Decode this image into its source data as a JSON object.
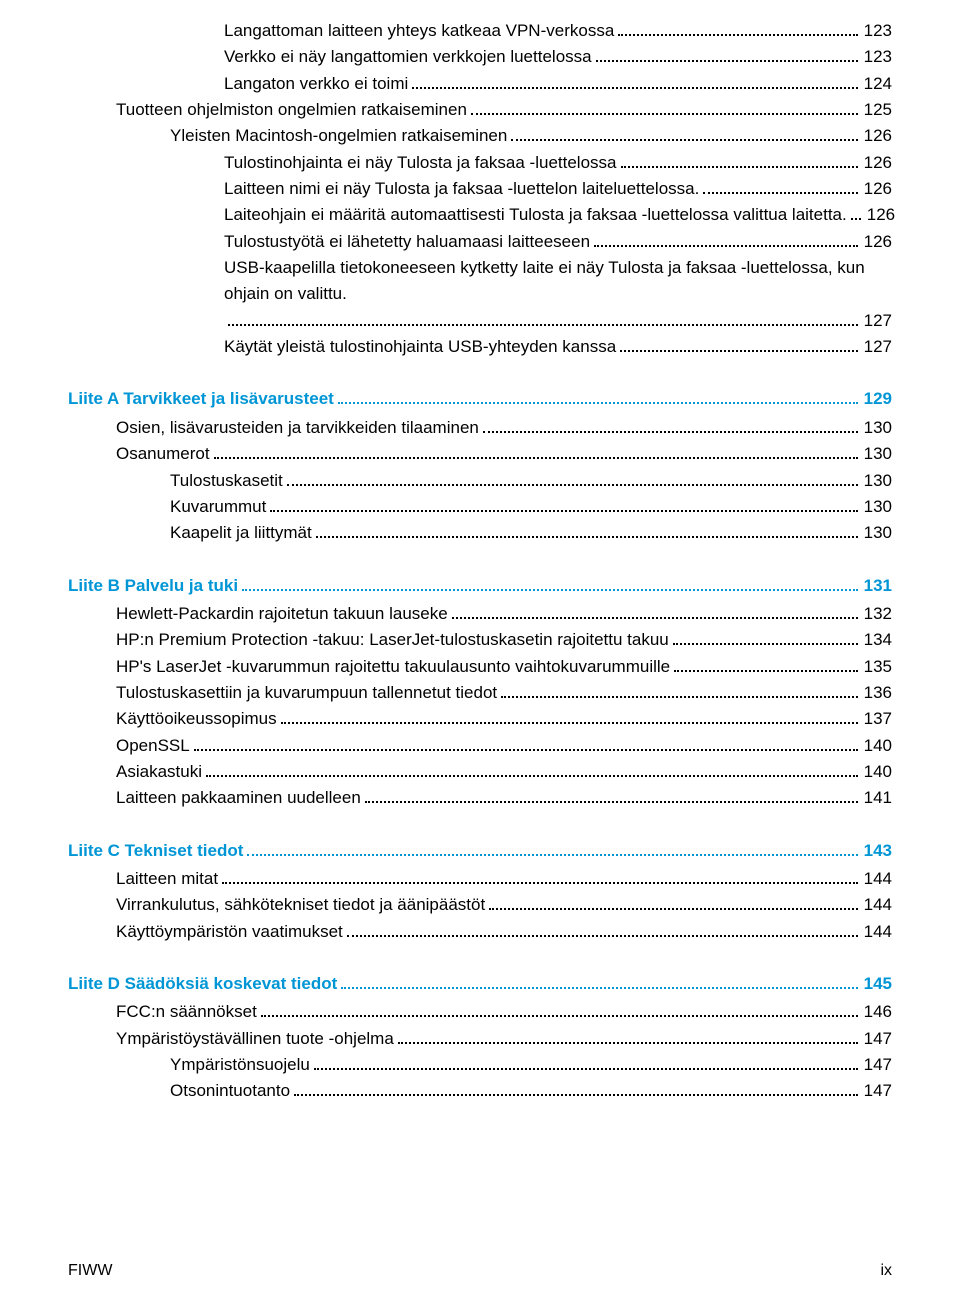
{
  "colors": {
    "heading": "#0096d6",
    "text": "#000000",
    "background": "#ffffff",
    "leader": "#000000"
  },
  "typography": {
    "body_fontsize": 17,
    "line_height": 1.55,
    "font_family": "Arial"
  },
  "sections": [
    {
      "heading": null,
      "entries": [
        {
          "indent": 4,
          "label": "Langattoman laitteen yhteys katkeaa VPN-verkossa",
          "page": "123"
        },
        {
          "indent": 4,
          "label": "Verkko ei näy langattomien verkkojen luettelossa",
          "page": "123"
        },
        {
          "indent": 4,
          "label": "Langaton verkko ei toimi",
          "page": "124"
        },
        {
          "indent": 2,
          "label": "Tuotteen ohjelmiston ongelmien ratkaiseminen",
          "page": "125"
        },
        {
          "indent": 3,
          "label": "Yleisten Macintosh-ongelmien ratkaiseminen",
          "page": "126"
        },
        {
          "indent": 4,
          "label": "Tulostinohjainta ei näy Tulosta ja faksaa -luettelossa",
          "page": "126"
        },
        {
          "indent": 4,
          "label": "Laitteen nimi ei näy Tulosta ja faksaa -luettelon laiteluettelossa.",
          "page": "126"
        },
        {
          "indent": 4,
          "label": "Laiteohjain ei määritä automaattisesti Tulosta ja faksaa -luettelossa valittua laitetta.",
          "page": "126"
        },
        {
          "indent": 4,
          "label": "Tulostustyötä ei lähetetty haluamaasi laitteeseen",
          "page": "126"
        },
        {
          "indent": 4,
          "label": "USB-kaapelilla tietokoneeseen kytketty laite ei näy Tulosta ja faksaa -luettelossa, kun ohjain on valittu.",
          "page": "127",
          "wrap": true
        },
        {
          "indent": 4,
          "label": "Käytät yleistä tulostinohjainta USB-yhteyden kanssa",
          "page": "127"
        }
      ]
    },
    {
      "heading": {
        "label": "Liite A  Tarvikkeet ja lisävarusteet",
        "page": "129"
      },
      "entries": [
        {
          "indent": 2,
          "label": "Osien, lisävarusteiden ja tarvikkeiden tilaaminen",
          "page": "130"
        },
        {
          "indent": 2,
          "label": "Osanumerot",
          "page": "130"
        },
        {
          "indent": 3,
          "label": "Tulostuskasetit",
          "page": "130"
        },
        {
          "indent": 3,
          "label": "Kuvarummut",
          "page": "130"
        },
        {
          "indent": 3,
          "label": "Kaapelit ja liittymät",
          "page": "130"
        }
      ]
    },
    {
      "heading": {
        "label": "Liite B  Palvelu ja tuki",
        "page": "131"
      },
      "entries": [
        {
          "indent": 2,
          "label": "Hewlett-Packardin rajoitetun takuun lauseke",
          "page": "132"
        },
        {
          "indent": 2,
          "label": "HP:n Premium Protection -takuu: LaserJet-tulostuskasetin rajoitettu takuu",
          "page": "134"
        },
        {
          "indent": 2,
          "label": "HP's LaserJet -kuvarummun rajoitettu takuulausunto vaihtokuvarummuille",
          "page": "135"
        },
        {
          "indent": 2,
          "label": "Tulostuskasettiin ja kuvarumpuun tallennetut tiedot",
          "page": "136"
        },
        {
          "indent": 2,
          "label": "Käyttöoikeussopimus",
          "page": "137"
        },
        {
          "indent": 2,
          "label": "OpenSSL",
          "page": "140"
        },
        {
          "indent": 2,
          "label": "Asiakastuki",
          "page": "140"
        },
        {
          "indent": 2,
          "label": "Laitteen pakkaaminen uudelleen",
          "page": "141"
        }
      ]
    },
    {
      "heading": {
        "label": "Liite C  Tekniset tiedot",
        "page": "143"
      },
      "entries": [
        {
          "indent": 2,
          "label": "Laitteen mitat",
          "page": "144"
        },
        {
          "indent": 2,
          "label": "Virrankulutus, sähkötekniset tiedot ja äänipäästöt",
          "page": "144"
        },
        {
          "indent": 2,
          "label": "Käyttöympäristön vaatimukset",
          "page": "144"
        }
      ]
    },
    {
      "heading": {
        "label": "Liite D  Säädöksiä koskevat tiedot",
        "page": "145"
      },
      "entries": [
        {
          "indent": 2,
          "label": "FCC:n säännökset",
          "page": "146"
        },
        {
          "indent": 2,
          "label": "Ympäristöystävällinen tuote -ohjelma",
          "page": "147"
        },
        {
          "indent": 3,
          "label": "Ympäristönsuojelu",
          "page": "147"
        },
        {
          "indent": 3,
          "label": "Otsonintuotanto",
          "page": "147"
        }
      ]
    }
  ],
  "footer": {
    "left": "FIWW",
    "right": "ix"
  }
}
